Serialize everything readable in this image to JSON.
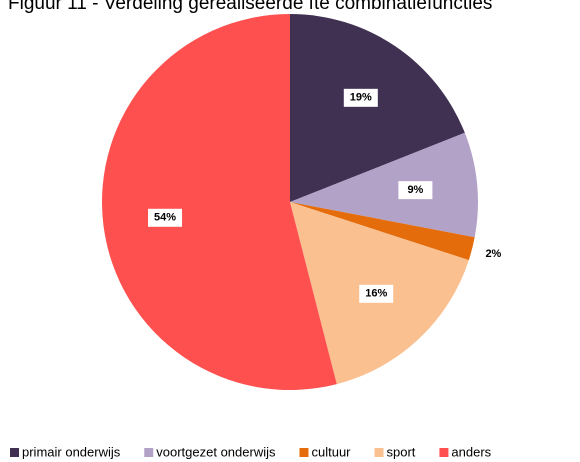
{
  "chart_data": {
    "type": "pie",
    "title": "Figuur 11 - Verdeling gerealiseerde fte combinatiefuncties",
    "categories": [
      "primair onderwijs",
      "voortgezet onderwijs",
      "cultuur",
      "sport",
      "anders"
    ],
    "values": [
      19,
      9,
      2,
      16,
      54
    ],
    "value_labels": [
      "19%",
      "9%",
      "2%",
      "16%",
      "54%"
    ],
    "colors": [
      "#403152",
      "#b3a2c7",
      "#e46c0a",
      "#fac090",
      "#ff5050"
    ],
    "legend": "bottom"
  }
}
